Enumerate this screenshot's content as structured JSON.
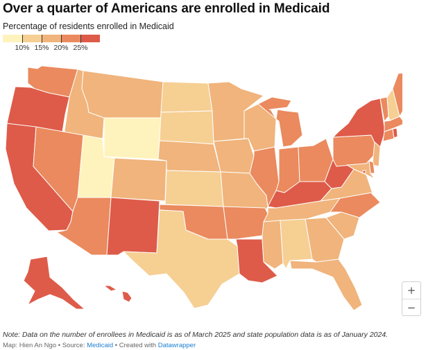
{
  "header": {
    "title": "Over a quarter of Americans are enrolled in Medicaid",
    "subtitle": "Percentage of residents enrolled in Medicaid"
  },
  "legend": {
    "bins": [
      {
        "color": "#fff3bd"
      },
      {
        "color": "#f6cf93"
      },
      {
        "color": "#f0b47c"
      },
      {
        "color": "#ea8a5e"
      },
      {
        "color": "#de5b49"
      }
    ],
    "tick_labels": [
      "10%",
      "15%",
      "20%",
      "25%"
    ]
  },
  "zoom": {
    "in_label": "+",
    "out_label": "−"
  },
  "footer": {
    "note": "Note: Data on the number of enrollees in Medicaid is as of March 2025 and state population data is as of January 2024.",
    "map_credit": "Map: Hien An Ngo",
    "source_prefix": "Source:",
    "source_link": "Medicaid",
    "created_prefix": "Created with",
    "created_link": "Datawrapper",
    "separator": "•"
  },
  "map_colors": {
    "bin1": "#fff3bd",
    "bin2": "#f6cf93",
    "bin3": "#f0b47c",
    "bin4": "#ea8a5e",
    "bin5": "#de5b49"
  },
  "state_bins": {
    "WA": 4,
    "OR": 5,
    "CA": 5,
    "ID": 3,
    "NV": 4,
    "UT": 1,
    "AZ": 4,
    "MT": 3,
    "WY": 1,
    "CO": 3,
    "NM": 5,
    "ND": 2,
    "SD": 2,
    "NE": 3,
    "KS": 2,
    "OK": 4,
    "TX": 2,
    "MN": 3,
    "IA": 3,
    "MO": 3,
    "AR": 4,
    "LA": 5,
    "WI": 3,
    "IL": 4,
    "MI": 4,
    "IN": 4,
    "OH": 4,
    "KY": 5,
    "TN": 3,
    "MS": 3,
    "AL": 2,
    "GA": 3,
    "FL": 3,
    "SC": 3,
    "NC": 4,
    "VA": 3,
    "WV": 5,
    "PA": 4,
    "NY": 5,
    "VT": 4,
    "NH": 2,
    "ME": 4,
    "MA": 4,
    "RI": 5,
    "CT": 4,
    "NJ": 3,
    "DE": 4,
    "MD": 3,
    "DC": 5,
    "AK": 5,
    "HI": 5
  }
}
